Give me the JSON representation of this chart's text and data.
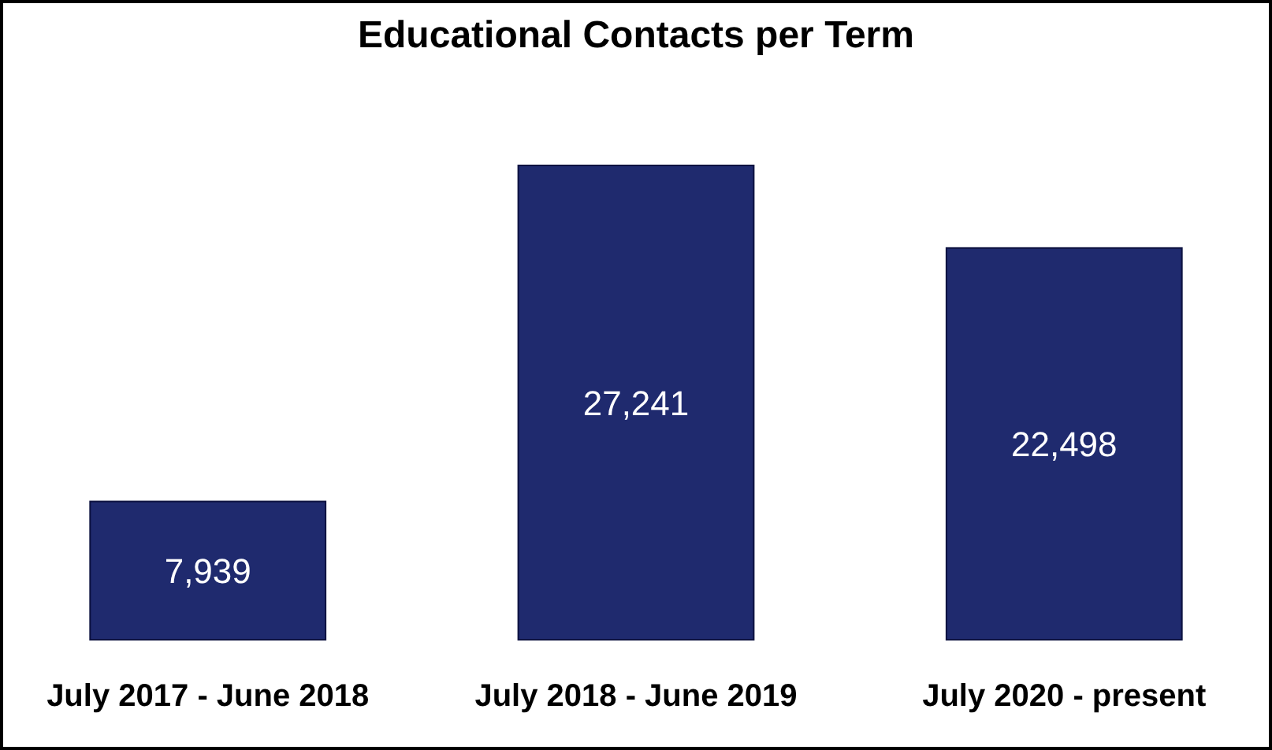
{
  "chart_data": {
    "type": "bar",
    "title": "Educational Contacts per Term",
    "categories": [
      "July 2017 - June 2018",
      "July 2018 - June 2019",
      "July 2020 - present"
    ],
    "values": [
      7939,
      27241,
      22498
    ],
    "value_labels": [
      "7,939",
      "27,241",
      "22,498"
    ],
    "color": "#1f2a6e"
  }
}
